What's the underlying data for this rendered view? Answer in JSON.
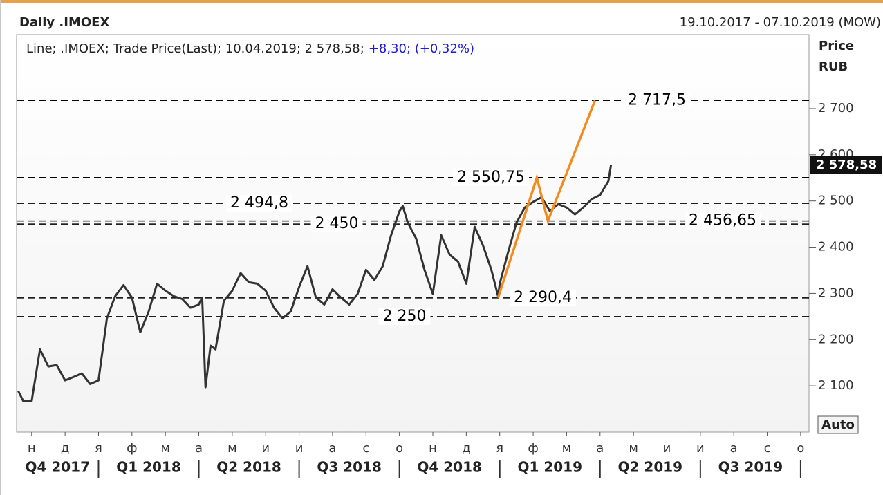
{
  "header": {
    "title": "Daily .IMOEX",
    "range": "19.10.2017 - 07.10.2019 (MOW)"
  },
  "chart_data": {
    "type": "line",
    "legend_text": "Line; .IMOEX; Trade Price(Last); 10.04.2019; 2 578,58;",
    "legend_change": "+8,30; (+0,32%)",
    "y_label": "Price",
    "y_unit": "RUB",
    "autoscale_button": "Auto",
    "xlim": [
      0.55,
      24.25
    ],
    "xticks": [
      {
        "value": 1,
        "label": "н"
      },
      {
        "value": 2,
        "label": "д"
      },
      {
        "value": 3,
        "label": "я"
      },
      {
        "value": 4,
        "label": "ф"
      },
      {
        "value": 5,
        "label": "м"
      },
      {
        "value": 6,
        "label": "а"
      },
      {
        "value": 7,
        "label": "м"
      },
      {
        "value": 8,
        "label": "и"
      },
      {
        "value": 9,
        "label": "и"
      },
      {
        "value": 10,
        "label": "а"
      },
      {
        "value": 11,
        "label": "с"
      },
      {
        "value": 12,
        "label": "о"
      },
      {
        "value": 13,
        "label": "н"
      },
      {
        "value": 14,
        "label": "д"
      },
      {
        "value": 15,
        "label": "я"
      },
      {
        "value": 16,
        "label": "ф"
      },
      {
        "value": 17,
        "label": "м"
      },
      {
        "value": 18,
        "label": "а"
      },
      {
        "value": 19,
        "label": "м"
      },
      {
        "value": 20,
        "label": "и"
      },
      {
        "value": 21,
        "label": "и"
      },
      {
        "value": 22,
        "label": "а"
      },
      {
        "value": 23,
        "label": "с"
      },
      {
        "value": 24,
        "label": "о"
      }
    ],
    "quarters": [
      "Q4 2017",
      "Q1 2018",
      "Q2 2018",
      "Q3 2018",
      "Q4 2018",
      "Q1 2019",
      "Q2 2019",
      "Q3 2019"
    ],
    "ylim": [
      2000,
      2860
    ],
    "yticks": [
      {
        "value": 2100,
        "label": "2 100"
      },
      {
        "value": 2200,
        "label": "2 200"
      },
      {
        "value": 2300,
        "label": "2 300"
      },
      {
        "value": 2400,
        "label": "2 400"
      },
      {
        "value": 2500,
        "label": "2 500"
      },
      {
        "value": 2600,
        "label": "2 600"
      },
      {
        "value": 2700,
        "label": "2 700"
      }
    ],
    "series": [
      {
        "color": "#333333",
        "x": [
          0.6,
          0.75,
          1.0,
          1.25,
          1.5,
          1.75,
          2.0,
          2.25,
          2.5,
          2.75,
          3.0,
          3.25,
          3.5,
          3.75,
          4.0,
          4.25,
          4.5,
          4.75,
          5.0,
          5.25,
          5.5,
          5.75,
          6.0,
          6.1,
          6.2,
          6.35,
          6.5,
          6.75,
          7.0,
          7.25,
          7.5,
          7.75,
          8.0,
          8.25,
          8.5,
          8.75,
          9.0,
          9.25,
          9.5,
          9.75,
          10.0,
          10.25,
          10.5,
          10.75,
          11.0,
          11.25,
          11.5,
          11.75,
          12.0,
          12.1,
          12.25,
          12.5,
          12.75,
          13.0,
          13.25,
          13.5,
          13.75,
          14.0,
          14.25,
          14.5,
          14.75,
          14.95,
          15.0,
          15.25,
          15.5,
          15.75,
          16.0,
          16.25,
          16.5,
          16.75,
          17.0,
          17.25,
          17.5,
          17.75,
          18.0,
          18.25,
          18.33
        ],
        "values": [
          2089,
          2067,
          2067,
          2179,
          2142,
          2145,
          2112,
          2119,
          2127,
          2104,
          2112,
          2246,
          2294,
          2318,
          2291,
          2216,
          2261,
          2321,
          2306,
          2294,
          2288,
          2269,
          2276,
          2291,
          2097,
          2187,
          2179,
          2284,
          2306,
          2344,
          2324,
          2321,
          2306,
          2269,
          2246,
          2261,
          2314,
          2359,
          2291,
          2276,
          2309,
          2291,
          2276,
          2299,
          2351,
          2329,
          2359,
          2426,
          2478,
          2489,
          2453,
          2419,
          2351,
          2299,
          2426,
          2384,
          2369,
          2321,
          2444,
          2404,
          2351,
          2294,
          2321,
          2389,
          2453,
          2486,
          2498,
          2508,
          2478,
          2493,
          2486,
          2471,
          2486,
          2504,
          2513,
          2543,
          2578.58
        ]
      }
    ],
    "last_value": 2578.58,
    "last_value_label": "2 578,58",
    "levels": [
      {
        "value": 2717.5,
        "label": "2 717,5"
      },
      {
        "value": 2550.75,
        "label": "2 550,75"
      },
      {
        "value": 2494.8,
        "label": "2 494,8"
      },
      {
        "value": 2456.65,
        "label": "2 456,65"
      },
      {
        "value": 2450,
        "label": "2 450"
      },
      {
        "value": 2290.4,
        "label": "2 290,4"
      },
      {
        "value": 2250,
        "label": "2 250"
      }
    ],
    "trend": {
      "color": "#f28c1e",
      "x": [
        14.95,
        16.11,
        16.44,
        17.85
      ],
      "values": [
        2290.4,
        2550.75,
        2456.65,
        2717.5
      ]
    }
  }
}
